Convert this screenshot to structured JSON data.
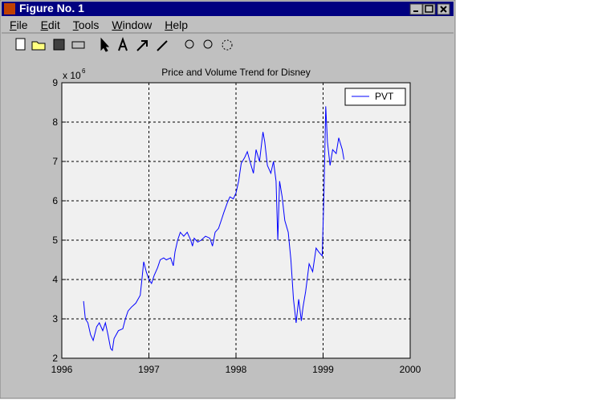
{
  "window": {
    "title": "Figure No. 1",
    "menu": [
      "File",
      "Edit",
      "Tools",
      "Window",
      "Help"
    ]
  },
  "chart_data": {
    "type": "line",
    "title": "Price and Volume Trend for Disney",
    "y_exponent": {
      "base": "x 10",
      "power": "6"
    },
    "xlim": [
      1996,
      2000
    ],
    "xticks": [
      1996,
      1997,
      1998,
      1999,
      2000
    ],
    "ylim": [
      2,
      9
    ],
    "yticks": [
      2,
      3,
      4,
      5,
      6,
      7,
      8,
      9
    ],
    "grid": true,
    "legend": "upper right",
    "x": [
      1996.25,
      1996.27,
      1996.3,
      1996.33,
      1996.36,
      1996.4,
      1996.43,
      1996.47,
      1996.5,
      1996.53,
      1996.56,
      1996.58,
      1996.6,
      1996.65,
      1996.7,
      1996.73,
      1996.76,
      1996.8,
      1996.85,
      1996.9,
      1996.92,
      1996.94,
      1996.97,
      1997.0,
      1997.03,
      1997.06,
      1997.1,
      1997.13,
      1997.17,
      1997.2,
      1997.25,
      1997.28,
      1997.3,
      1997.33,
      1997.36,
      1997.4,
      1997.44,
      1997.48,
      1997.5,
      1997.52,
      1997.56,
      1997.6,
      1997.65,
      1997.7,
      1997.73,
      1997.76,
      1997.8,
      1997.83,
      1997.86,
      1997.9,
      1997.93,
      1997.97,
      1998.0,
      1998.03,
      1998.06,
      1998.1,
      1998.13,
      1998.16,
      1998.2,
      1998.23,
      1998.27,
      1998.31,
      1998.33,
      1998.36,
      1998.4,
      1998.43,
      1998.46,
      1998.48,
      1998.5,
      1998.53,
      1998.56,
      1998.6,
      1998.63,
      1998.66,
      1998.69,
      1998.72,
      1998.75,
      1998.77,
      1998.8,
      1998.84,
      1998.88,
      1998.92,
      1998.95,
      1998.99,
      1999.01,
      1999.03,
      1999.05,
      1999.08,
      1999.11,
      1999.15,
      1999.18,
      1999.22,
      1999.24
    ],
    "series": [
      {
        "name": "PVT",
        "color": "#0000ff",
        "values": [
          3.45,
          3.0,
          2.9,
          2.6,
          2.45,
          2.8,
          2.9,
          2.7,
          2.9,
          2.6,
          2.25,
          2.2,
          2.5,
          2.7,
          2.75,
          3.0,
          3.2,
          3.3,
          3.4,
          3.6,
          4.0,
          4.45,
          4.2,
          4.0,
          3.9,
          4.1,
          4.3,
          4.5,
          4.55,
          4.5,
          4.55,
          4.35,
          4.7,
          5.0,
          5.2,
          5.1,
          5.2,
          5.0,
          4.85,
          5.05,
          4.95,
          5.0,
          5.1,
          5.05,
          4.85,
          5.2,
          5.3,
          5.5,
          5.7,
          5.95,
          6.1,
          6.05,
          6.2,
          6.5,
          6.95,
          7.1,
          7.25,
          7.0,
          6.7,
          7.3,
          7.0,
          7.75,
          7.5,
          6.9,
          6.7,
          7.0,
          6.5,
          5.0,
          6.5,
          6.1,
          5.5,
          5.2,
          4.5,
          3.5,
          2.9,
          3.5,
          2.95,
          3.3,
          3.7,
          4.4,
          4.2,
          4.8,
          4.7,
          4.6,
          6.2,
          8.4,
          7.5,
          6.9,
          7.3,
          7.2,
          7.6,
          7.3,
          7.05
        ]
      }
    ]
  }
}
